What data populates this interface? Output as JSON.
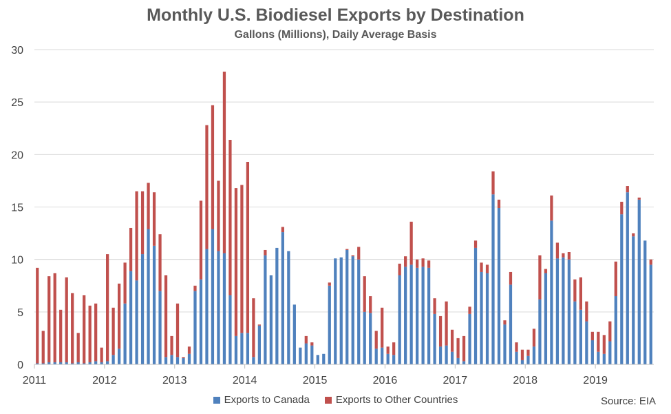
{
  "chart_data": {
    "type": "bar",
    "stacked": true,
    "title": "Monthly U.S. Biodiesel Exports by Destination",
    "subtitle": "Gallons (Millions), Daily Average Basis",
    "xlabel": "",
    "ylabel": "",
    "ylim": [
      0,
      30
    ],
    "yticks": [
      0,
      5,
      10,
      15,
      20,
      25,
      30
    ],
    "grid": true,
    "legend_position": "bottom",
    "x_start": "2011-01",
    "x_end": "2019-09",
    "year_labels": [
      "2011",
      "2012",
      "2013",
      "2014",
      "2015",
      "2016",
      "2017",
      "2018",
      "2019"
    ],
    "series": [
      {
        "name": "Exports to Canada",
        "color": "#4F81BD",
        "values": [
          0.1,
          0.1,
          0.2,
          0.2,
          0.2,
          0.2,
          0.1,
          0.2,
          0.1,
          0.2,
          0.3,
          0.2,
          0.3,
          0.9,
          1.5,
          5.8,
          8.9,
          8.0,
          10.5,
          12.9,
          11.3,
          7.0,
          0.7,
          0.9,
          0.7,
          0.6,
          1.0,
          7.0,
          8.1,
          11.0,
          12.9,
          10.8,
          10.6,
          6.6,
          2.7,
          3.0,
          3.0,
          0.7,
          3.7,
          10.4,
          8.5,
          11.1,
          12.6,
          10.8,
          5.7,
          1.6,
          2.0,
          1.8,
          0.9,
          1.0,
          7.5,
          10.1,
          10.2,
          10.9,
          10.3,
          10.0,
          5.0,
          4.9,
          1.5,
          1.6,
          1.0,
          0.9,
          8.5,
          9.3,
          9.5,
          9.2,
          9.3,
          9.2,
          4.8,
          1.7,
          1.8,
          1.2,
          0.6,
          0.3,
          4.8,
          11.1,
          8.8,
          8.7,
          16.2,
          14.9,
          3.8,
          7.6,
          1.2,
          0.4,
          0.8,
          1.7,
          6.2,
          8.7,
          13.7,
          10.1,
          10.2,
          10.0,
          6.0,
          5.2,
          4.1,
          2.3,
          1.2,
          1.0,
          2.2,
          6.5,
          14.3,
          16.4,
          12.2,
          15.7,
          11.8,
          9.5
        ]
      },
      {
        "name": "Exports to Other Countries",
        "color": "#C0504D",
        "values": [
          9.1,
          3.1,
          8.2,
          8.5,
          5.0,
          8.1,
          6.7,
          2.8,
          6.5,
          5.4,
          5.5,
          1.4,
          10.2,
          4.5,
          6.2,
          3.9,
          4.1,
          8.5,
          6.0,
          4.4,
          5.1,
          5.4,
          7.8,
          1.8,
          5.1,
          0.1,
          0.7,
          0.5,
          7.5,
          11.8,
          11.8,
          6.7,
          17.3,
          14.8,
          14.1,
          14.1,
          16.3,
          5.6,
          0.1,
          0.5,
          0.0,
          0.0,
          0.5,
          0.0,
          0.0,
          0.0,
          0.7,
          0.3,
          0.0,
          0.0,
          0.3,
          0.0,
          0.0,
          0.1,
          0.1,
          1.2,
          3.4,
          1.6,
          1.7,
          3.8,
          0.7,
          1.2,
          1.1,
          1.0,
          4.1,
          0.8,
          0.8,
          0.7,
          1.5,
          2.9,
          4.2,
          2.1,
          1.9,
          2.4,
          0.7,
          0.7,
          0.9,
          0.8,
          2.2,
          0.8,
          0.4,
          1.2,
          0.9,
          1.0,
          0.6,
          1.7,
          4.2,
          0.4,
          2.4,
          1.5,
          0.4,
          0.7,
          2.1,
          3.1,
          1.9,
          0.8,
          1.9,
          1.8,
          1.9,
          3.3,
          1.2,
          0.6,
          0.3,
          0.2,
          0.0,
          0.5
        ]
      }
    ]
  },
  "source": "Source: EIA"
}
